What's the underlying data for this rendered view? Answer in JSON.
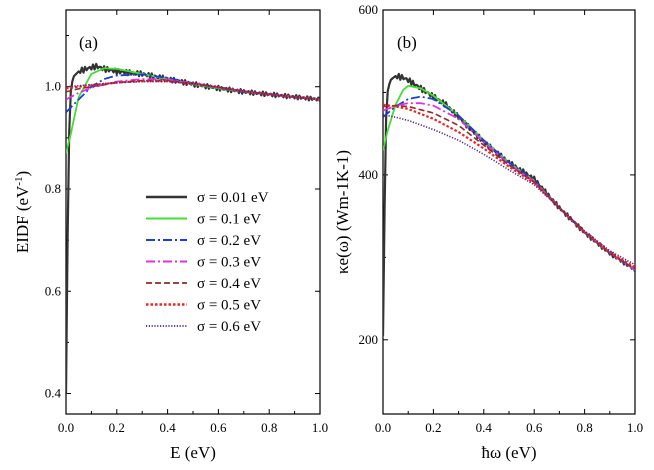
{
  "chart_data": [
    {
      "type": "line",
      "panel": "(a)",
      "xlabel": "E (eV)",
      "ylabel": "EIDF (eV",
      "ylabel_sup": "-1",
      "ylabel_end": ")",
      "xlim": [
        0.0,
        1.0
      ],
      "ylim": [
        0.36,
        1.15
      ],
      "xticks": [
        "0.0",
        "0.2",
        "0.4",
        "0.6",
        "0.8",
        "1.0"
      ],
      "xtick_values": [
        0.0,
        0.2,
        0.4,
        0.6,
        0.8,
        1.0
      ],
      "yticks": [
        "0.4",
        "0.6",
        "0.8",
        "1.0"
      ],
      "ytick_values": [
        0.4,
        0.6,
        0.8,
        1.0
      ],
      "legend_position": "center-right",
      "series": [
        {
          "name": "σ = 0.01 eV",
          "color": "#333333",
          "dash": "solid",
          "width": 2.2,
          "x": [
            0.0,
            0.005,
            0.01,
            0.015,
            0.02,
            0.03,
            0.05,
            0.08,
            0.12,
            0.15,
            0.2,
            0.3,
            0.4,
            0.5,
            0.6,
            0.7,
            0.8,
            0.9,
            1.0
          ],
          "y": [
            0.4,
            0.65,
            0.86,
            0.96,
            1.0,
            1.02,
            1.03,
            1.035,
            1.04,
            1.035,
            1.03,
            1.025,
            1.015,
            1.005,
            0.997,
            0.99,
            0.985,
            0.98,
            0.975
          ]
        },
        {
          "name": "σ = 0.1 eV",
          "color": "#44dd33",
          "dash": "solid",
          "width": 1.8,
          "x": [
            0.0,
            0.02,
            0.05,
            0.1,
            0.15,
            0.2,
            0.25,
            0.3,
            0.4,
            0.5,
            0.6,
            0.7,
            0.8,
            0.9,
            1.0
          ],
          "y": [
            0.87,
            0.91,
            0.98,
            1.025,
            1.036,
            1.035,
            1.03,
            1.025,
            1.015,
            1.005,
            0.997,
            0.99,
            0.985,
            0.98,
            0.975
          ]
        },
        {
          "name": "σ = 0.2 eV",
          "color": "#1a3ed6",
          "dash": "dashdot",
          "width": 1.8,
          "x": [
            0.0,
            0.05,
            0.1,
            0.15,
            0.2,
            0.3,
            0.4,
            0.5,
            0.6,
            0.7,
            0.8,
            0.9,
            1.0
          ],
          "y": [
            0.95,
            0.975,
            1.0,
            1.015,
            1.022,
            1.024,
            1.017,
            1.007,
            0.998,
            0.99,
            0.985,
            0.98,
            0.975
          ]
        },
        {
          "name": "σ = 0.3 eV",
          "color": "#dd33dd",
          "dash": "dashdot",
          "width": 1.8,
          "x": [
            0.0,
            0.05,
            0.1,
            0.2,
            0.3,
            0.4,
            0.5,
            0.6,
            0.7,
            0.8,
            0.9,
            1.0
          ],
          "y": [
            0.975,
            0.988,
            0.998,
            1.01,
            1.015,
            1.014,
            1.007,
            0.999,
            0.991,
            0.985,
            0.98,
            0.975
          ]
        },
        {
          "name": "σ = 0.4 eV",
          "color": "#8b2b2b",
          "dash": "dashed",
          "width": 1.6,
          "x": [
            0.0,
            0.05,
            0.1,
            0.2,
            0.3,
            0.4,
            0.5,
            0.6,
            0.7,
            0.8,
            0.9,
            1.0
          ],
          "y": [
            0.99,
            0.996,
            1.0,
            1.008,
            1.012,
            1.012,
            1.006,
            0.999,
            0.991,
            0.985,
            0.98,
            0.975
          ]
        },
        {
          "name": "σ = 0.5 eV",
          "color": "#ee2222",
          "dash": "dotted",
          "width": 2.2,
          "x": [
            0.0,
            0.05,
            0.1,
            0.2,
            0.3,
            0.4,
            0.5,
            0.6,
            0.7,
            0.8,
            0.9,
            1.0
          ],
          "y": [
            0.997,
            1.0,
            1.003,
            1.008,
            1.011,
            1.011,
            1.006,
            0.999,
            0.991,
            0.985,
            0.98,
            0.975
          ]
        },
        {
          "name": "σ = 0.6 eV",
          "color": "#552288",
          "dash": "finedot",
          "width": 1.6,
          "x": [
            0.0,
            0.05,
            0.1,
            0.2,
            0.3,
            0.4,
            0.5,
            0.6,
            0.7,
            0.8,
            0.9,
            1.0
          ],
          "y": [
            1.0,
            1.002,
            1.004,
            1.008,
            1.01,
            1.01,
            1.006,
            0.999,
            0.991,
            0.985,
            0.98,
            0.975
          ]
        }
      ]
    },
    {
      "type": "line",
      "panel": "(b)",
      "xlabel": "ħω (eV)",
      "ylabel": "κe(ω) (Wm-1K-1)",
      "xlim": [
        0.0,
        1.0
      ],
      "ylim": [
        110,
        600
      ],
      "xticks": [
        "0.0",
        "0.2",
        "0.4",
        "0.6",
        "0.8",
        "1.0"
      ],
      "xtick_values": [
        0.0,
        0.2,
        0.4,
        0.6,
        0.8,
        1.0
      ],
      "yticks": [
        "200",
        "400",
        "600"
      ],
      "ytick_values": [
        200,
        400,
        600
      ],
      "series": [
        {
          "name": "σ = 0.01 eV",
          "color": "#333333",
          "dash": "solid",
          "width": 2.2,
          "x": [
            0.0,
            0.005,
            0.01,
            0.015,
            0.02,
            0.03,
            0.05,
            0.08,
            0.1,
            0.15,
            0.2,
            0.25,
            0.3,
            0.35,
            0.4,
            0.5,
            0.6,
            0.7,
            0.8,
            0.9,
            1.0
          ],
          "y": [
            205,
            330,
            445,
            490,
            505,
            515,
            520,
            518,
            515,
            505,
            495,
            485,
            470,
            455,
            440,
            415,
            395,
            360,
            330,
            305,
            285
          ]
        },
        {
          "name": "σ = 0.1 eV",
          "color": "#44dd33",
          "dash": "solid",
          "width": 1.8,
          "x": [
            0.0,
            0.02,
            0.05,
            0.08,
            0.1,
            0.15,
            0.2,
            0.3,
            0.4,
            0.5,
            0.6,
            0.7,
            0.8,
            0.9,
            1.0
          ],
          "y": [
            430,
            455,
            485,
            503,
            508,
            505,
            496,
            472,
            442,
            415,
            393,
            360,
            330,
            305,
            285
          ]
        },
        {
          "name": "σ = 0.2 eV",
          "color": "#1a3ed6",
          "dash": "dashdot",
          "width": 1.8,
          "x": [
            0.0,
            0.05,
            0.1,
            0.15,
            0.2,
            0.3,
            0.4,
            0.5,
            0.6,
            0.7,
            0.8,
            0.9,
            1.0
          ],
          "y": [
            470,
            483,
            492,
            495,
            492,
            472,
            442,
            415,
            393,
            360,
            330,
            305,
            285
          ]
        },
        {
          "name": "σ = 0.3 eV",
          "color": "#dd33dd",
          "dash": "dashdot",
          "width": 1.8,
          "x": [
            0.0,
            0.05,
            0.1,
            0.15,
            0.2,
            0.3,
            0.4,
            0.5,
            0.6,
            0.7,
            0.8,
            0.9,
            1.0
          ],
          "y": [
            478,
            484,
            487,
            487,
            484,
            468,
            440,
            413,
            392,
            360,
            330,
            305,
            285
          ]
        },
        {
          "name": "σ = 0.4 eV",
          "color": "#8b2b2b",
          "dash": "dashed",
          "width": 1.6,
          "x": [
            0.0,
            0.05,
            0.1,
            0.2,
            0.3,
            0.4,
            0.5,
            0.6,
            0.7,
            0.8,
            0.9,
            1.0
          ],
          "y": [
            483,
            484,
            483,
            475,
            460,
            436,
            412,
            391,
            360,
            330,
            305,
            286
          ]
        },
        {
          "name": "σ = 0.5 eV",
          "color": "#ee2222",
          "dash": "dotted",
          "width": 2.2,
          "x": [
            0.0,
            0.05,
            0.1,
            0.2,
            0.3,
            0.4,
            0.5,
            0.6,
            0.7,
            0.8,
            0.9,
            1.0
          ],
          "y": [
            485,
            483,
            480,
            468,
            452,
            432,
            410,
            390,
            360,
            331,
            306,
            288
          ]
        },
        {
          "name": "σ = 0.6 eV",
          "color": "#552288",
          "dash": "finedot",
          "width": 1.6,
          "x": [
            0.0,
            0.05,
            0.1,
            0.2,
            0.3,
            0.4,
            0.5,
            0.6,
            0.7,
            0.8,
            0.9,
            1.0
          ],
          "y": [
            473,
            470,
            466,
            455,
            442,
            425,
            406,
            388,
            360,
            332,
            308,
            291
          ]
        }
      ]
    }
  ]
}
